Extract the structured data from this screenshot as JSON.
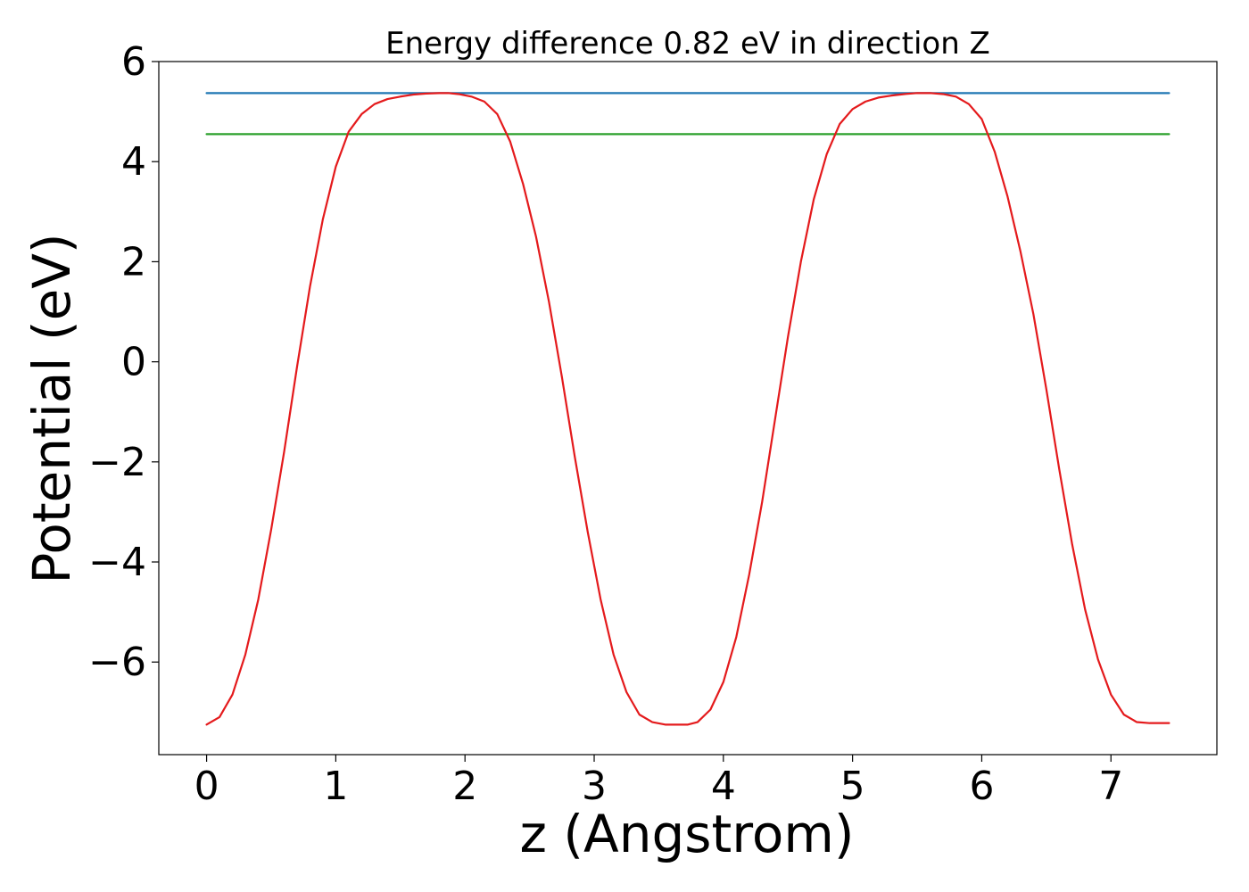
{
  "chart_data": {
    "type": "line",
    "title": "Energy difference 0.82 eV in direction Z",
    "xlabel": "z (Angstrom)",
    "ylabel": "Potential (eV)",
    "xlim": [
      -0.37,
      7.82
    ],
    "ylim": [
      -7.85,
      6.0
    ],
    "x_ticks": [
      0,
      1,
      2,
      3,
      4,
      5,
      6,
      7
    ],
    "x_tick_labels": [
      "0",
      "1",
      "2",
      "3",
      "4",
      "5",
      "6",
      "7"
    ],
    "y_ticks": [
      -6,
      -4,
      -2,
      0,
      2,
      4,
      6
    ],
    "y_tick_labels": [
      "−6",
      "−4",
      "−2",
      "0",
      "2",
      "4",
      "6"
    ],
    "grid": false,
    "legend": "none",
    "series": [
      {
        "color": "#1f77b4",
        "x": [
          0,
          7.45
        ],
        "y": [
          5.37,
          5.37
        ]
      },
      {
        "color": "#2ca02c",
        "x": [
          0,
          7.45
        ],
        "y": [
          4.55,
          4.55
        ]
      },
      {
        "color": "#e41a1c",
        "x": [
          0.0,
          0.1,
          0.2,
          0.3,
          0.4,
          0.5,
          0.6,
          0.7,
          0.8,
          0.9,
          1.0,
          1.1,
          1.2,
          1.3,
          1.4,
          1.5,
          1.6,
          1.7,
          1.8,
          1.87,
          1.95,
          2.05,
          2.15,
          2.25,
          2.35,
          2.45,
          2.55,
          2.65,
          2.75,
          2.85,
          2.95,
          3.05,
          3.15,
          3.25,
          3.35,
          3.45,
          3.55,
          3.65,
          3.725,
          3.8,
          3.9,
          4.0,
          4.1,
          4.2,
          4.3,
          4.4,
          4.5,
          4.6,
          4.7,
          4.8,
          4.9,
          5.0,
          5.1,
          5.2,
          5.3,
          5.4,
          5.5,
          5.6,
          5.7,
          5.8,
          5.9,
          6.0,
          6.1,
          6.2,
          6.3,
          6.4,
          6.5,
          6.6,
          6.7,
          6.8,
          6.9,
          7.0,
          7.1,
          7.2,
          7.3,
          7.4,
          7.45
        ],
        "y": [
          -7.25,
          -7.1,
          -6.65,
          -5.85,
          -4.75,
          -3.35,
          -1.8,
          -0.1,
          1.5,
          2.85,
          3.9,
          4.6,
          4.95,
          5.15,
          5.25,
          5.3,
          5.34,
          5.36,
          5.37,
          5.37,
          5.35,
          5.3,
          5.2,
          4.95,
          4.4,
          3.55,
          2.5,
          1.2,
          -0.3,
          -1.9,
          -3.4,
          -4.75,
          -5.85,
          -6.6,
          -7.05,
          -7.2,
          -7.25,
          -7.25,
          -7.25,
          -7.2,
          -6.95,
          -6.4,
          -5.5,
          -4.25,
          -2.8,
          -1.15,
          0.5,
          2.0,
          3.25,
          4.15,
          4.75,
          5.05,
          5.2,
          5.28,
          5.32,
          5.35,
          5.37,
          5.37,
          5.35,
          5.3,
          5.15,
          4.85,
          4.2,
          3.3,
          2.2,
          0.95,
          -0.55,
          -2.15,
          -3.65,
          -4.95,
          -5.95,
          -6.65,
          -7.05,
          -7.2,
          -7.22,
          -7.22,
          -7.22
        ]
      }
    ]
  }
}
